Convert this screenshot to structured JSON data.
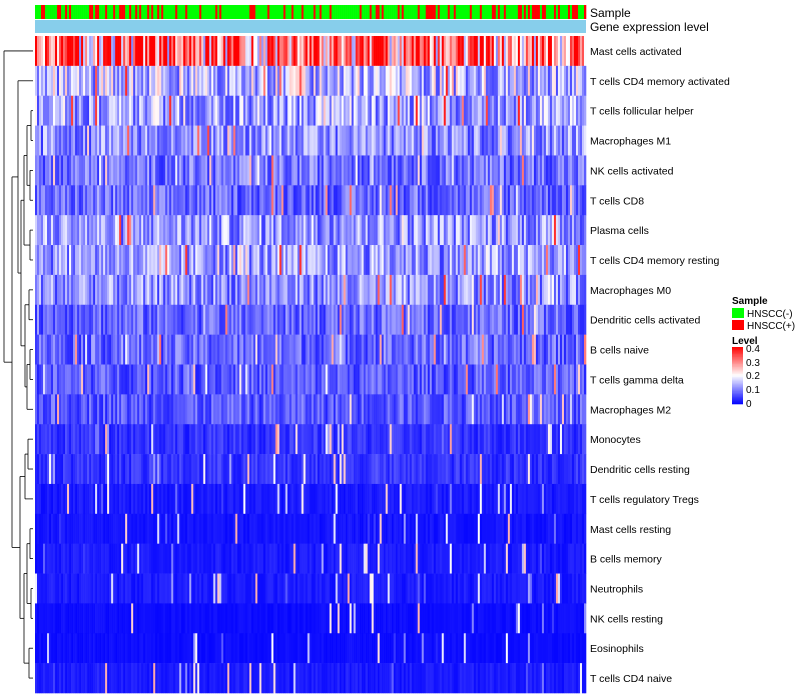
{
  "chart_data": {
    "type": "heatmap",
    "annotation_tracks": [
      {
        "key": "sample",
        "label": "Sample"
      },
      {
        "key": "level",
        "label": "Gene expression level"
      }
    ],
    "rows": [
      "Mast cells activated",
      "T cells CD4 memory activated",
      "T cells follicular helper",
      "Macrophages M1",
      "NK cells activated",
      "T cells CD8",
      "Plasma cells",
      "T cells CD4 memory resting",
      "Macrophages M0",
      "Dendritic cells activated",
      "B cells naive",
      "T cells gamma delta",
      "Macrophages M2",
      "Monocytes",
      "Dendritic cells resting",
      "T cells regulatory  Tregs",
      "Mast cells resting",
      "B cells memory",
      "Neutrophils",
      "NK cells resting",
      "Eosinophils",
      "T cells CD4 naive"
    ],
    "row_mean_levels": [
      0.3,
      0.15,
      0.13,
      0.11,
      0.09,
      0.08,
      0.12,
      0.12,
      0.11,
      0.08,
      0.08,
      0.07,
      0.07,
      0.04,
      0.04,
      0.02,
      0.015,
      0.02,
      0.02,
      0.01,
      0.01,
      0.02
    ],
    "n_samples": 275,
    "hnscc_pos_fraction": 0.28,
    "color_scale": {
      "min": 0,
      "max": 0.4,
      "ticks": [
        0.4,
        0.3,
        0.2,
        0.1,
        0
      ],
      "low_color": "#0000ff",
      "mid_color": "#ffffff",
      "high_color": "#ff0000",
      "mid_value": 0.2
    },
    "legend": {
      "sample_title": "Sample",
      "sample_items": [
        {
          "label": "HNSCC(-)",
          "color": "#00ff00"
        },
        {
          "label": "HNSCC(+)",
          "color": "#ff0000"
        }
      ],
      "level_title": "Level",
      "level_bar_color": "#87ceeb"
    }
  }
}
